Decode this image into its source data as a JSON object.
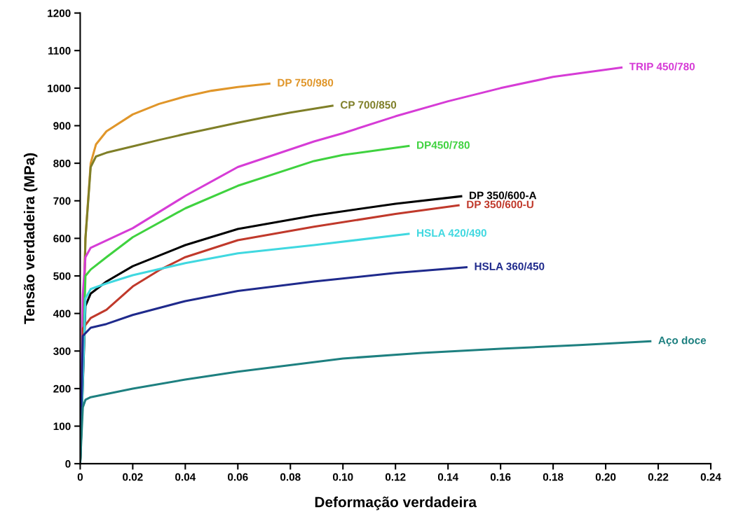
{
  "chart_data": {
    "type": "line",
    "xlabel": "Deformação verdadeira",
    "ylabel": "Tensão verdadeira (MPa)",
    "xlim": [
      0,
      0.24
    ],
    "ylim": [
      0,
      1200
    ],
    "xticks": [
      0,
      0.02,
      0.04,
      0.06,
      0.08,
      {
        "value": 0.1,
        "label": "0.10"
      },
      0.12,
      0.14,
      0.16,
      0.18,
      {
        "value": 0.2,
        "label": "0.20"
      },
      0.22,
      0.24
    ],
    "yticks": [
      0,
      100,
      200,
      300,
      400,
      500,
      600,
      700,
      800,
      900,
      1000,
      1100,
      1200
    ],
    "grid": false,
    "legend": false,
    "marker": "none",
    "line_style": "solid",
    "series": [
      {
        "name": "DP 750/980",
        "color": "#e0962a",
        "x": [
          0,
          0.002,
          0.004,
          0.006,
          0.01,
          0.02,
          0.03,
          0.04,
          0.05,
          0.06,
          0.072
        ],
        "values": [
          0,
          600,
          800,
          850,
          885,
          930,
          958,
          978,
          993,
          1003,
          1012
        ]
      },
      {
        "name": "CP 700/850",
        "color": "#7f7f28",
        "x": [
          0,
          0.002,
          0.004,
          0.006,
          0.01,
          0.02,
          0.03,
          0.04,
          0.05,
          0.06,
          0.07,
          0.08,
          0.096
        ],
        "values": [
          0,
          600,
          790,
          818,
          828,
          845,
          862,
          878,
          893,
          908,
          922,
          935,
          953
        ]
      },
      {
        "name": "TRIP 450/780",
        "color": "#d63cd6",
        "x": [
          0,
          0.001,
          0.002,
          0.004,
          0.02,
          0.04,
          0.06,
          0.089,
          0.1,
          0.12,
          0.14,
          0.16,
          0.18,
          0.206
        ],
        "values": [
          0,
          450,
          550,
          575,
          627,
          713,
          790,
          858,
          880,
          925,
          965,
          1000,
          1030,
          1055
        ]
      },
      {
        "name": "DP450/780",
        "color": "#3fd23f",
        "x": [
          0,
          0.002,
          0.004,
          0.01,
          0.02,
          0.04,
          0.06,
          0.089,
          0.1,
          0.125
        ],
        "values": [
          0,
          500,
          517,
          550,
          603,
          680,
          740,
          806,
          822,
          846
        ]
      },
      {
        "name": "DP 350/600-A",
        "color": "#000000",
        "x": [
          0,
          0.002,
          0.004,
          0.01,
          0.02,
          0.04,
          0.06,
          0.089,
          0.12,
          0.145
        ],
        "values": [
          0,
          420,
          453,
          485,
          526,
          582,
          625,
          661,
          692,
          712
        ]
      },
      {
        "name": "DP 350/600-U",
        "color": "#c0392b",
        "x": [
          0,
          0.001,
          0.004,
          0.01,
          0.02,
          0.03,
          0.04,
          0.06,
          0.089,
          0.12,
          0.144
        ],
        "values": [
          0,
          360,
          388,
          410,
          472,
          515,
          550,
          595,
          631,
          665,
          688
        ]
      },
      {
        "name": "HSLA 420/490",
        "color": "#40d8e0",
        "x": [
          0,
          0.002,
          0.004,
          0.01,
          0.02,
          0.04,
          0.06,
          0.089,
          0.125
        ],
        "values": [
          0,
          440,
          465,
          480,
          502,
          534,
          560,
          582,
          612
        ]
      },
      {
        "name": "HSLA 360/450",
        "color": "#1f2a8c",
        "x": [
          0,
          0.001,
          0.004,
          0.01,
          0.02,
          0.04,
          0.06,
          0.089,
          0.12,
          0.147
        ],
        "values": [
          0,
          340,
          362,
          372,
          396,
          433,
          460,
          485,
          508,
          523
        ]
      },
      {
        "name": "Aço doce",
        "color": "#1e8080",
        "x": [
          0,
          0.001,
          0.002,
          0.004,
          0.02,
          0.04,
          0.06,
          0.1,
          0.13,
          0.16,
          0.19,
          0.217
        ],
        "values": [
          0,
          150,
          170,
          177,
          200,
          224,
          245,
          280,
          295,
          306,
          316,
          326
        ]
      }
    ]
  }
}
